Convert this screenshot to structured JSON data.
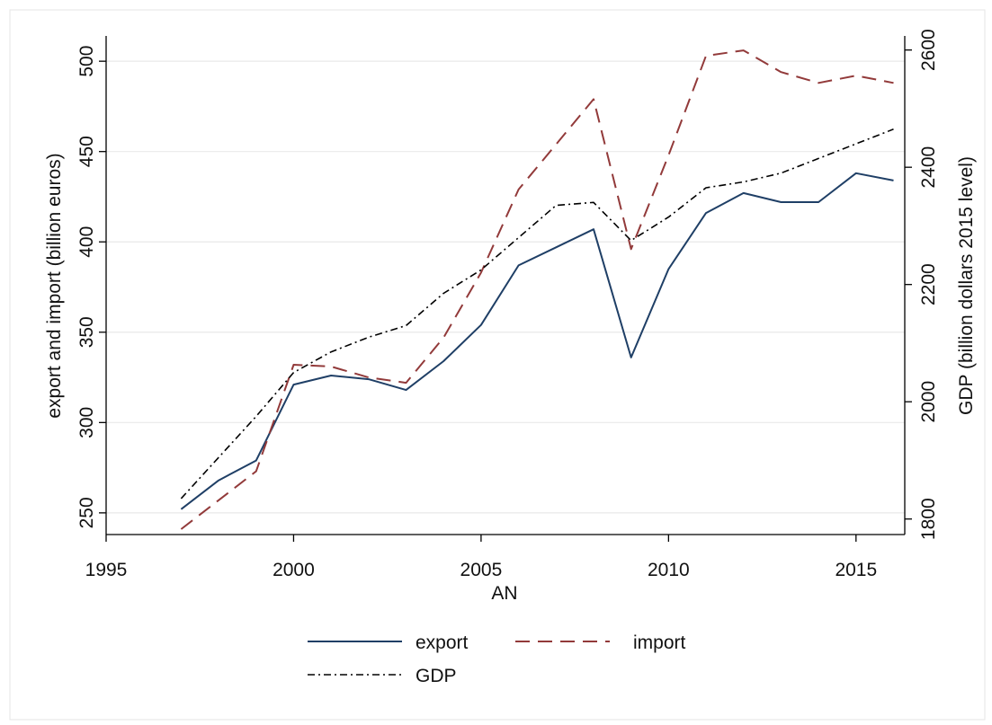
{
  "chart_data": {
    "type": "line",
    "xlabel": "AN",
    "ylabel_left": "export and import (billion euros)",
    "ylabel_right": "GDP (billion dollars 2015 level)",
    "xlim": [
      1995,
      2016.3
    ],
    "ylim_left": [
      238,
      514
    ],
    "ylim_right": [
      1773.5,
      2624
    ],
    "xticks": [
      1995,
      2000,
      2005,
      2010,
      2015
    ],
    "yticks_left": [
      250,
      300,
      350,
      400,
      450,
      500
    ],
    "yticks_right": [
      1800,
      2000,
      2200,
      2400,
      2600
    ],
    "grid": true,
    "legend_position": "bottom",
    "x": [
      1997,
      1998,
      1999,
      2000,
      2001,
      2002,
      2003,
      2004,
      2005,
      2006,
      2007,
      2008,
      2009,
      2010,
      2011,
      2012,
      2013,
      2014,
      2015,
      2016
    ],
    "series": [
      {
        "name": "export",
        "axis": "left",
        "style": "solid",
        "color": "#1f3f66",
        "values": [
          252,
          268,
          279,
          321,
          326,
          324,
          318,
          334,
          354,
          387,
          397,
          407,
          336,
          385,
          416,
          427,
          422,
          422,
          438,
          434
        ]
      },
      {
        "name": "import",
        "axis": "left",
        "style": "dash",
        "color": "#923a3a",
        "values": [
          241,
          257,
          273,
          332,
          331,
          325,
          322,
          347,
          383,
          429,
          454,
          479,
          396,
          448,
          503,
          506,
          494,
          488,
          492,
          488
        ]
      },
      {
        "name": "GDP",
        "axis": "right",
        "style": "dashdot",
        "color": "#000000",
        "values": [
          1835,
          1905,
          1975,
          2050,
          2085,
          2110,
          2130,
          2185,
          2225,
          2280,
          2335,
          2340,
          2275,
          2315,
          2365,
          2375,
          2390,
          2415,
          2440,
          2465
        ]
      }
    ]
  }
}
